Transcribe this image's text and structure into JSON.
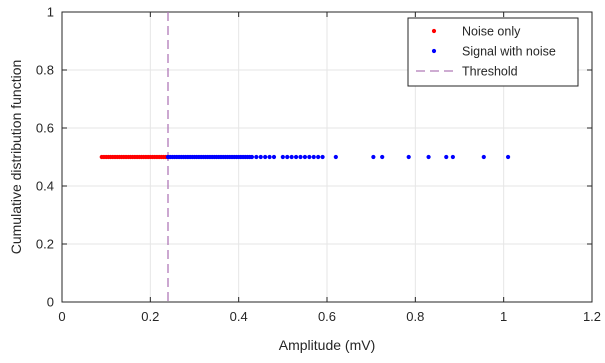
{
  "chart_data": {
    "type": "scatter",
    "title": "",
    "xlabel": "Amplitude (mV)",
    "ylabel": "Cumulative distribution function",
    "xlim": [
      0,
      1.2
    ],
    "ylim": [
      0,
      1
    ],
    "x_ticks": [
      "0",
      "0.2",
      "0.4",
      "0.6",
      "0.8",
      "1",
      "1.2"
    ],
    "y_ticks": [
      "0",
      "0.2",
      "0.4",
      "0.6",
      "0.8",
      "1"
    ],
    "grid": true,
    "legend_position": "top-right",
    "series": [
      {
        "name": "Noise only",
        "kind": "points",
        "color": "#ff0000",
        "y": 0.5,
        "x": [
          0.09,
          0.095,
          0.1,
          0.105,
          0.11,
          0.115,
          0.12,
          0.125,
          0.13,
          0.135,
          0.14,
          0.145,
          0.15,
          0.155,
          0.16,
          0.165,
          0.17,
          0.175,
          0.18,
          0.185,
          0.19,
          0.195,
          0.2,
          0.205,
          0.21,
          0.215,
          0.22,
          0.225,
          0.23,
          0.235,
          0.24
        ]
      },
      {
        "name": "Signal with noise",
        "kind": "points",
        "color": "#0000ff",
        "y": 0.5,
        "x": [
          0.24,
          0.245,
          0.25,
          0.255,
          0.26,
          0.265,
          0.27,
          0.275,
          0.28,
          0.285,
          0.29,
          0.295,
          0.3,
          0.305,
          0.31,
          0.315,
          0.32,
          0.325,
          0.33,
          0.335,
          0.34,
          0.345,
          0.35,
          0.355,
          0.36,
          0.365,
          0.37,
          0.375,
          0.38,
          0.385,
          0.39,
          0.395,
          0.4,
          0.405,
          0.41,
          0.415,
          0.42,
          0.425,
          0.43,
          0.44,
          0.45,
          0.46,
          0.47,
          0.48,
          0.5,
          0.51,
          0.52,
          0.53,
          0.54,
          0.55,
          0.56,
          0.57,
          0.58,
          0.59,
          0.62,
          0.705,
          0.725,
          0.785,
          0.83,
          0.87,
          0.885,
          0.955,
          1.01
        ]
      },
      {
        "name": "Threshold",
        "kind": "vline",
        "color": "#b07ab8",
        "x": 0.24
      }
    ]
  }
}
